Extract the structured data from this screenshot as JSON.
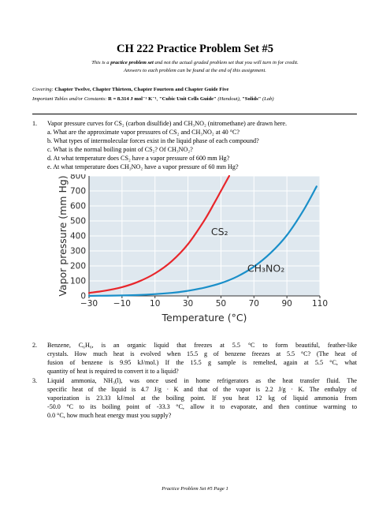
{
  "doc": {
    "title": "CH 222 Practice Problem Set #5",
    "subtitle": [
      {
        "pre": "This is a ",
        "bold": "practice problem set",
        "post": " and not the actual graded problem set that you will turn in for credit."
      },
      {
        "pre": "Answers to each problem can be found at the end of this assignment.",
        "bold": "",
        "post": ""
      }
    ],
    "covering": {
      "label": "Covering:",
      "text": " Chapter Twelve, Chapter Thirteen, Chapter Fourteen and Chapter Guide Five"
    },
    "tables": {
      "label": "Important Tables and/or Constants:",
      "r": " R = 8.314 J mol⁻¹ K⁻¹",
      "sep1": ", ",
      "cubic": "\"Cubic Unit Cells Guide\"",
      "handout": " (Handout), ",
      "solids": "\"Solids\"",
      "lab": " (Lab)"
    },
    "q1": {
      "number": "1.",
      "lines": [
        "Vapor pressure curves for CS₂ (carbon disulfide) and CH₃NO₂ (nitromethane) are drawn here.",
        "a. What are the approximate vapor pressures of CS₂ and CH₃NO₂ at 40 °C?",
        "b. What types of intermolecular forces exist in the liquid phase of each compound?",
        "c. What is the normal boiling point of CS₂? Of CH₃NO₂?",
        "d. At what temperature does CS₂ have a vapor pressure of 600 mm Hg?",
        "e. At what temperature does CH₃NO₂ have a vapor pressure of 60 mm Hg?"
      ]
    },
    "q2": {
      "number": "2.",
      "lines": [
        "Benzene, C₆H₆, is an organic liquid that freezes at 5.5 °C to form beautiful, feather-like",
        "crystals. How much heat is evolved when 15.5 g of benzene freezes at 5.5 °C? (The heat of",
        "fusion of benzene is 9.95 kJ/mol.) If the 15.5 g sample is remelted, again at 5.5 °C, what",
        "quantity of heat is required to convert it to a liquid?"
      ]
    },
    "q3": {
      "number": "3.",
      "lines": [
        "Liquid ammonia, NH₃(l), was once used in home refrigerators as the heat transfer fluid. The",
        "specific heat of the liquid is 4.7 J/g · K and that of the vapor is 2.2 J/g · K. The enthalpy of",
        "vaporization is 23.33 kJ/mol at the boiling point. If you heat 12 kg of liquid ammonia from",
        "-50.0 °C to its boiling point of -33.3 °C, allow it to evaporate, and then continue warming to",
        "0.0 °C, how much heat energy must you supply?"
      ]
    },
    "footer": "Practice Problem Set #5 Page 1"
  },
  "chart_data": {
    "type": "line",
    "xlabel": "Temperature (°C)",
    "ylabel": "Vapor pressure (mm Hg)",
    "xlim": [
      -30,
      110
    ],
    "ylim": [
      0,
      800
    ],
    "xticks_row1": [
      -30,
      10,
      50,
      90
    ],
    "xticks_row2": [
      -10,
      30,
      70,
      110
    ],
    "yticks": [
      0,
      100,
      200,
      300,
      400,
      500,
      600,
      700,
      800
    ],
    "grid": true,
    "background": "#dfe8ef",
    "series": [
      {
        "name": "CS₂",
        "color": "#e8262b",
        "x": [
          -30,
          -20,
          -10,
          0,
          10,
          20,
          30,
          40,
          46,
          50,
          55
        ],
        "y": [
          20,
          35,
          58,
          95,
          150,
          230,
          345,
          505,
          620,
          700,
          800
        ]
      },
      {
        "name": "CH₃NO₂",
        "color": "#1a8fc9",
        "x": [
          -30,
          0,
          20,
          30,
          40,
          50,
          60,
          70,
          80,
          90,
          100,
          108
        ],
        "y": [
          0,
          6,
          20,
          34,
          55,
          85,
          130,
          195,
          285,
          405,
          570,
          730
        ]
      }
    ]
  }
}
